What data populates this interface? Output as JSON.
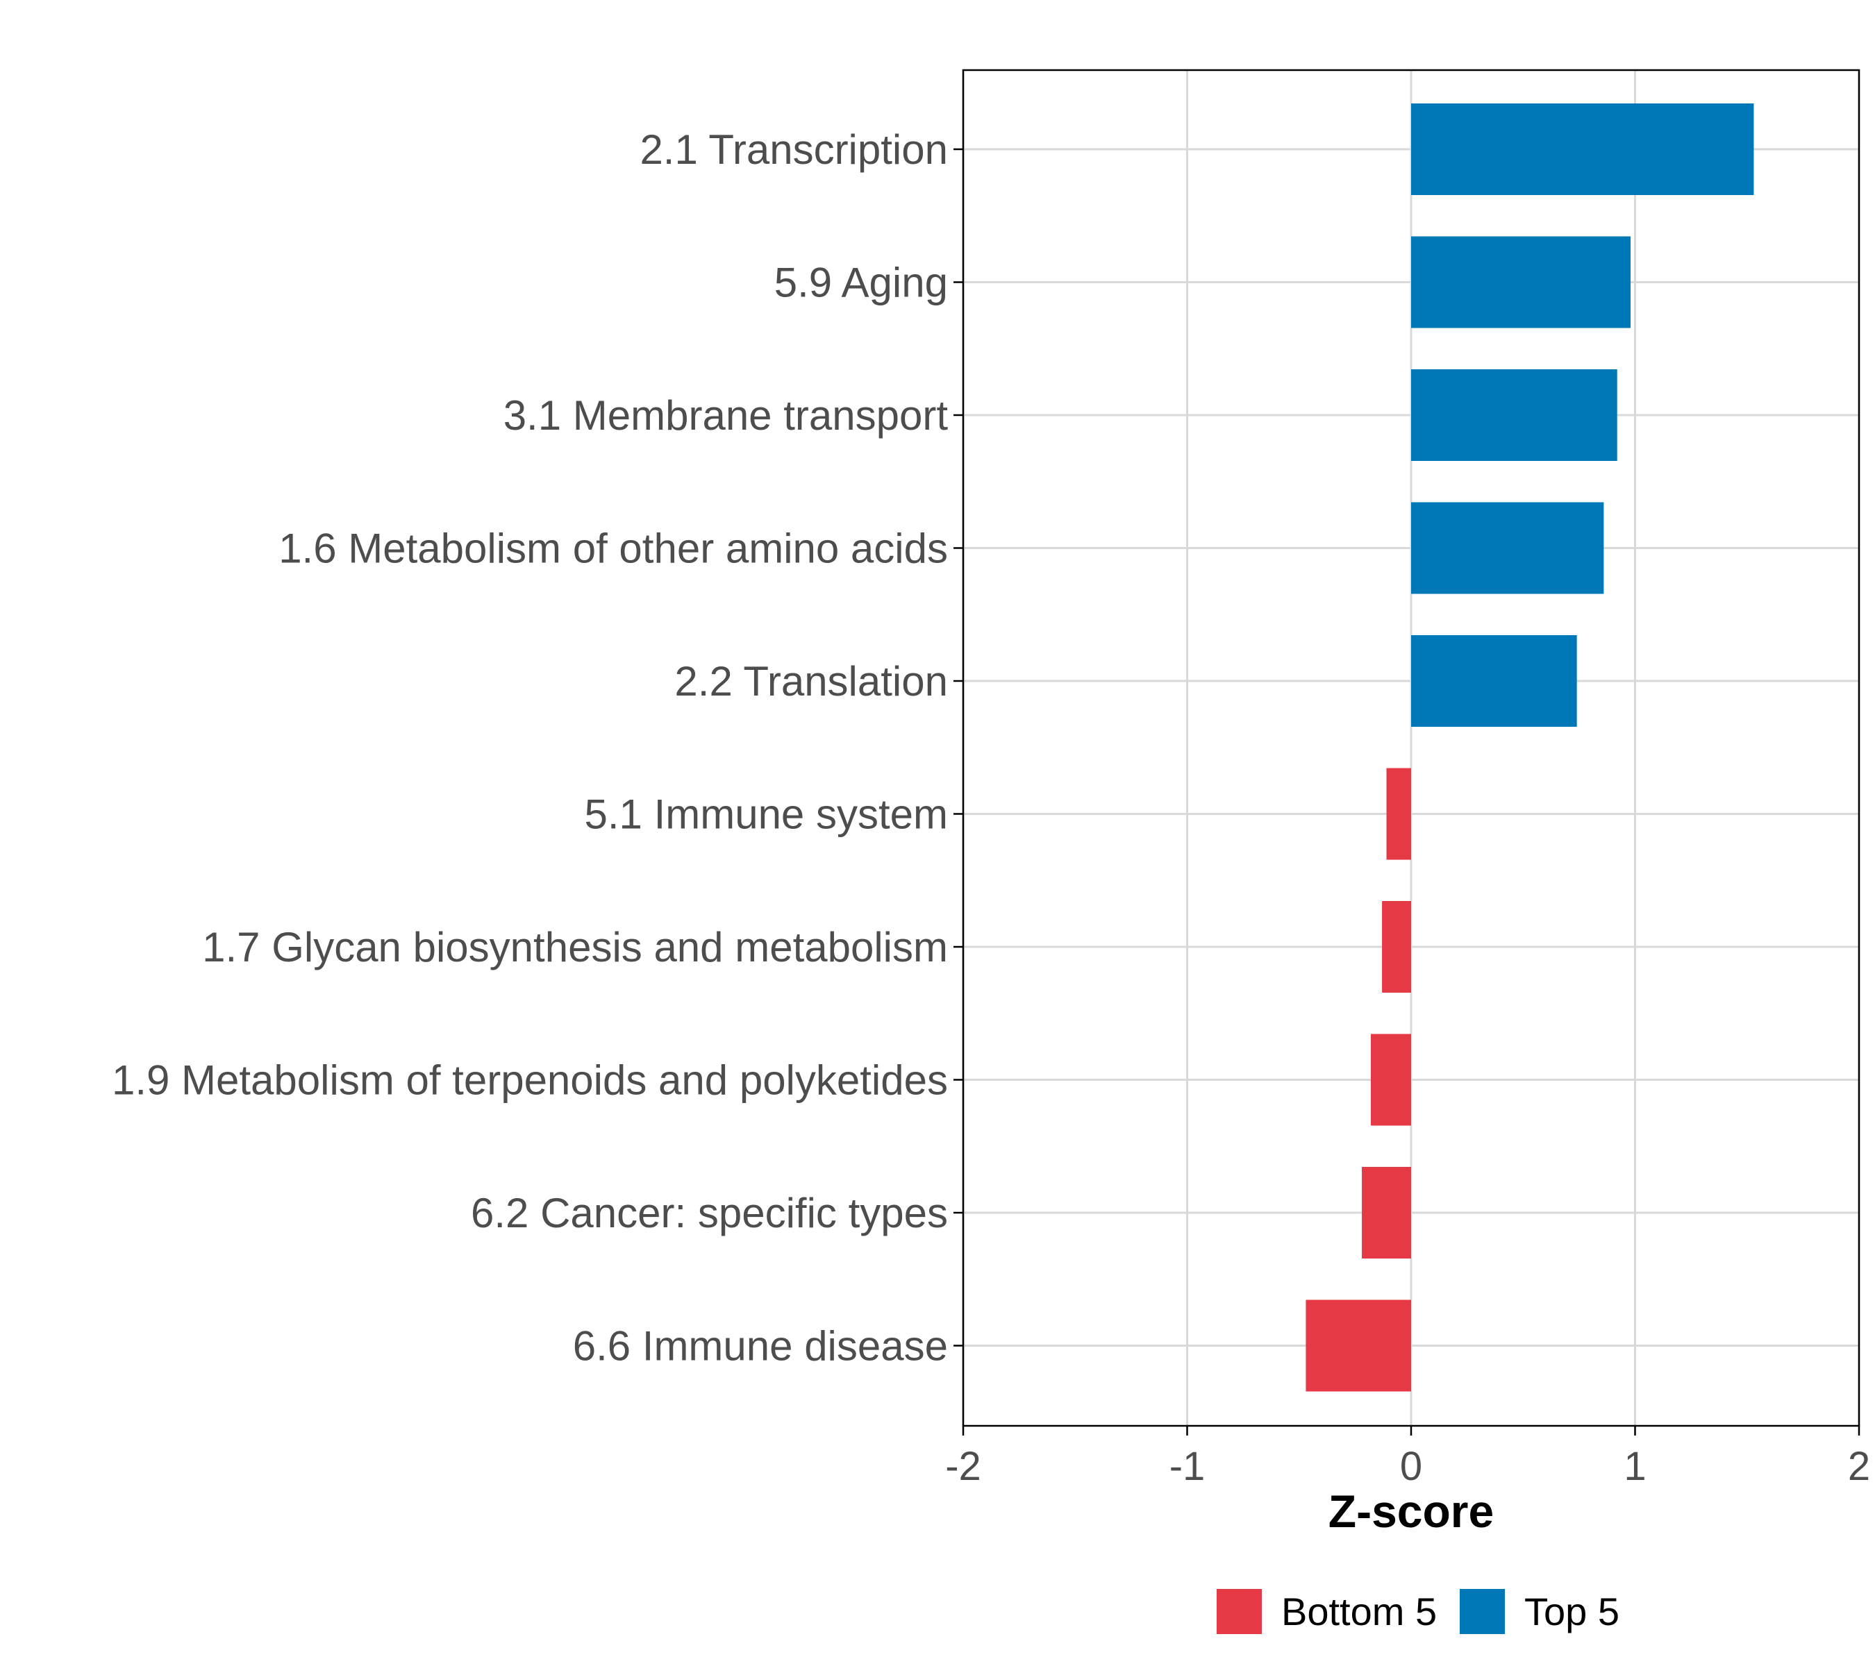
{
  "chart_data": {
    "type": "bar",
    "orientation": "horizontal",
    "title": "",
    "xlabel": "Z-score",
    "ylabel": "",
    "xlim": [
      -2,
      2
    ],
    "xticks": [
      -2,
      -1,
      0,
      1,
      2
    ],
    "xtick_labels": [
      "-2",
      "-1",
      "0",
      "1",
      "2"
    ],
    "grid": true,
    "legend_position": "bottom",
    "categories": [
      "2.1 Transcription",
      "5.9 Aging",
      "3.1 Membrane transport",
      "1.6 Metabolism of other amino acids",
      "2.2 Translation",
      "5.1 Immune system",
      "1.7 Glycan biosynthesis and metabolism",
      "1.9 Metabolism of terpenoids and polyketides",
      "6.2 Cancer: specific types",
      "6.6 Immune disease"
    ],
    "values": [
      1.53,
      0.98,
      0.92,
      0.86,
      0.74,
      -0.11,
      -0.13,
      -0.18,
      -0.22,
      -0.47
    ],
    "groups": [
      "Top 5",
      "Top 5",
      "Top 5",
      "Top 5",
      "Top 5",
      "Bottom 5",
      "Bottom 5",
      "Bottom 5",
      "Bottom 5",
      "Bottom 5"
    ],
    "legend": [
      {
        "label": "Bottom 5",
        "color": "#E63946"
      },
      {
        "label": "Top 5",
        "color": "#0077B6"
      }
    ]
  },
  "colors": {
    "Top 5": "#0077B6",
    "Bottom 5": "#E63946",
    "grid": "#d9d9d9",
    "axis": "#000000",
    "text": "#4d4d4d"
  }
}
